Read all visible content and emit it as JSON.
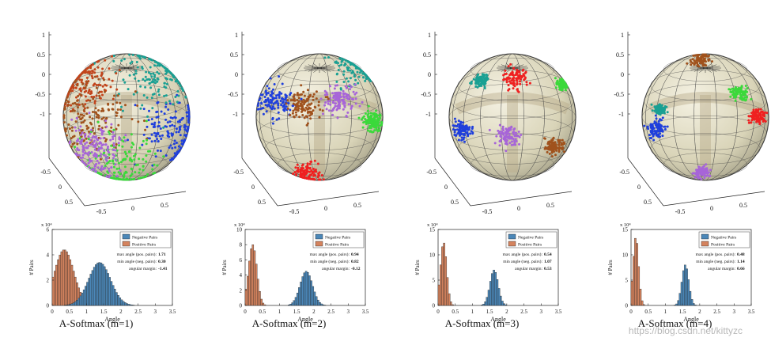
{
  "figure": {
    "watermark": "https://blog.csdn.net/kittyzc"
  },
  "chart_data": [
    {
      "type": "histogram",
      "title": "A-Softmax (m=1)",
      "sphere": {
        "axis_ticks": [
          "1",
          "0.5",
          "0",
          "-0.5",
          "-1",
          "-0.5",
          "0",
          "0.5",
          "-0.5",
          "0",
          "0.5"
        ],
        "cluster_colors": [
          "#1f3fdc",
          "#1aa093",
          "#c2441b",
          "#a0521d",
          "#3bd93b",
          "#a765d8"
        ],
        "style": "scattered"
      },
      "xlabel": "Angle",
      "ylabel": "# Pairs",
      "yexp": "x 10⁴",
      "xlim": [
        0,
        3.5
      ],
      "ylim": [
        0,
        6
      ],
      "xticks": [
        "0",
        "0.5",
        "1",
        "1.5",
        "2",
        "2.5",
        "3",
        "3.5"
      ],
      "yticks": [
        "0",
        "2",
        "4",
        "6"
      ],
      "legend": [
        "Negative Pairs",
        "Positive Pairs"
      ],
      "annotations": [
        {
          "label": "max angle (pos. pairs):",
          "value": "1.71"
        },
        {
          "label": "min angle (neg. pairs):",
          "value": "0.30"
        },
        {
          "label": "angular margin:",
          "value": "-1.41"
        }
      ],
      "series": [
        {
          "name": "Positive Pairs",
          "color": "#d4835e",
          "mean": 0.35,
          "sd": 0.28,
          "peak": 4.4
        },
        {
          "name": "Negative Pairs",
          "color": "#4b87b8",
          "mean": 1.38,
          "sd": 0.32,
          "peak": 3.4
        }
      ]
    },
    {
      "type": "histogram",
      "title": "A-Softmax (m=2)",
      "sphere": {
        "axis_ticks": [
          "1",
          "0.5",
          "0",
          "-0.5",
          "-1",
          "-0.5",
          "0",
          "0.5",
          "-0.5",
          "0",
          "0.5"
        ],
        "cluster_colors": [
          "#1aa093",
          "#1f3fdc",
          "#a765d8",
          "#3bd93b",
          "#a0521d",
          "#ef2020"
        ],
        "style": "medium"
      },
      "xlabel": "Angle",
      "ylabel": "# Pairs",
      "yexp": "x 10⁴",
      "xlim": [
        0,
        3.5
      ],
      "ylim": [
        0,
        10
      ],
      "xticks": [
        "0",
        "0.5",
        "1",
        "1.5",
        "2",
        "2.5",
        "3",
        "3.5"
      ],
      "yticks": [
        "0",
        "2",
        "4",
        "6",
        "8",
        "10"
      ],
      "legend": [
        "Negative Pairs",
        "Positive Pairs"
      ],
      "annotations": [
        {
          "label": "max angle (pos. pairs):",
          "value": "0.94"
        },
        {
          "label": "min angle (neg. pairs):",
          "value": "0.82"
        },
        {
          "label": "angular margin:",
          "value": "-0.12"
        }
      ],
      "series": [
        {
          "name": "Positive Pairs",
          "color": "#d4835e",
          "mean": 0.22,
          "sd": 0.12,
          "peak": 8.0
        },
        {
          "name": "Negative Pairs",
          "color": "#4b87b8",
          "mean": 1.78,
          "sd": 0.18,
          "peak": 4.5
        }
      ]
    },
    {
      "type": "histogram",
      "title": "A-Softmax (m=3)",
      "sphere": {
        "axis_ticks": [
          "1",
          "0.5",
          "0",
          "-0.5",
          "-1",
          "-0.5",
          "0",
          "0.5",
          "-0.5",
          "0",
          "0.5"
        ],
        "cluster_colors": [
          "#ef2020",
          "#1aa093",
          "#3bd93b",
          "#1f3fdc",
          "#a765d8",
          "#a0521d"
        ],
        "style": "tight"
      },
      "xlabel": "Angle",
      "ylabel": "# Pairs",
      "yexp": "x 10⁴",
      "xlim": [
        0,
        3.5
      ],
      "ylim": [
        0,
        15
      ],
      "xticks": [
        "0",
        "0.5",
        "1",
        "1.5",
        "2",
        "2.5",
        "3",
        "3.5"
      ],
      "yticks": [
        "0",
        "5",
        "10",
        "15"
      ],
      "legend": [
        "Negative Pairs",
        "Positive Pairs"
      ],
      "annotations": [
        {
          "label": "max angle (pos. pairs):",
          "value": "0.54"
        },
        {
          "label": "min angle (neg. pairs):",
          "value": "1.07"
        },
        {
          "label": "angular margin:",
          "value": "0.53"
        }
      ],
      "series": [
        {
          "name": "Positive Pairs",
          "color": "#d4835e",
          "mean": 0.16,
          "sd": 0.09,
          "peak": 12.5
        },
        {
          "name": "Negative Pairs",
          "color": "#4b87b8",
          "mean": 1.63,
          "sd": 0.12,
          "peak": 7.0
        }
      ]
    },
    {
      "type": "histogram",
      "title": "A-Softmax (m=4)",
      "sphere": {
        "axis_ticks": [
          "1",
          "0.5",
          "0",
          "-0.5",
          "-1",
          "-0.5",
          "0",
          "0.5",
          "-0.5",
          "0",
          "0.5"
        ],
        "cluster_colors": [
          "#a0521d",
          "#1aa093",
          "#3bd93b",
          "#ef2020",
          "#1f3fdc",
          "#a765d8"
        ],
        "style": "tight"
      },
      "xlabel": "Angle",
      "ylabel": "# Pairs",
      "yexp": "x 10⁴",
      "xlim": [
        0,
        3.5
      ],
      "ylim": [
        0,
        15
      ],
      "xticks": [
        "0",
        "0.5",
        "1",
        "1.5",
        "2",
        "2.5",
        "3",
        "3.5"
      ],
      "yticks": [
        "0",
        "5",
        "10",
        "15"
      ],
      "legend": [
        "Negative Pairs",
        "Positive Pairs"
      ],
      "annotations": [
        {
          "label": "max angle (pos. pairs):",
          "value": "0.48"
        },
        {
          "label": "min angle (neg. pairs):",
          "value": "1.14"
        },
        {
          "label": "angular margin:",
          "value": "0.66"
        }
      ],
      "series": [
        {
          "name": "Positive Pairs",
          "color": "#d4835e",
          "mean": 0.14,
          "sd": 0.08,
          "peak": 13.5
        },
        {
          "name": "Negative Pairs",
          "color": "#4b87b8",
          "mean": 1.58,
          "sd": 0.1,
          "peak": 8.0
        }
      ]
    }
  ]
}
